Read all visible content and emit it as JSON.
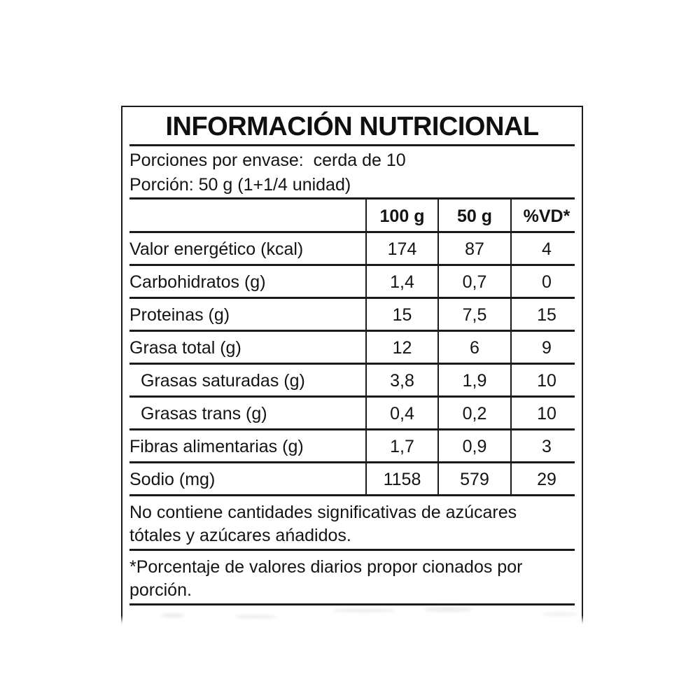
{
  "label": {
    "title": "INFORMACIÓN NUTRICIONAL",
    "serving": {
      "line1": "Porciones por envase:  cerda de 10",
      "line2": "Porción: 50 g (1+1/4 unidad)"
    },
    "table": {
      "headers": {
        "col1": "",
        "col2": "100 g",
        "col3": "50 g",
        "col4": "%VD*"
      },
      "rows": [
        {
          "label": "Valor energético (kcal)",
          "indent": false,
          "per100": "174",
          "per50": "87",
          "vd": "4"
        },
        {
          "label": "Carbohidratos (g)",
          "indent": false,
          "per100": "1,4",
          "per50": "0,7",
          "vd": "0"
        },
        {
          "label": "Proteinas (g)",
          "indent": false,
          "per100": "15",
          "per50": "7,5",
          "vd": "15"
        },
        {
          "label": "Grasa total (g)",
          "indent": false,
          "per100": "12",
          "per50": "6",
          "vd": "9"
        },
        {
          "label": "Grasas saturadas (g)",
          "indent": true,
          "per100": "3,8",
          "per50": "1,9",
          "vd": "10"
        },
        {
          "label": "Grasas trans (g)",
          "indent": true,
          "per100": "0,4",
          "per50": "0,2",
          "vd": "10"
        },
        {
          "label": "Fibras alimentarias (g)",
          "indent": false,
          "per100": "1,7",
          "per50": "0,9",
          "vd": "3"
        },
        {
          "label": "Sodio (mg)",
          "indent": false,
          "per100": "1158",
          "per50": "579",
          "vd": "29"
        }
      ]
    },
    "notes": {
      "note1_line1": "No contiene cantidades significativas de azúcares",
      "note1_line2": "tótales y azúcares ańadidos.",
      "note2_line1": "*Porcentaje de valores diarios propor cionados por",
      "note2_line2": "porción."
    },
    "colors": {
      "ink": "#141414",
      "background": "#ffffff"
    }
  }
}
